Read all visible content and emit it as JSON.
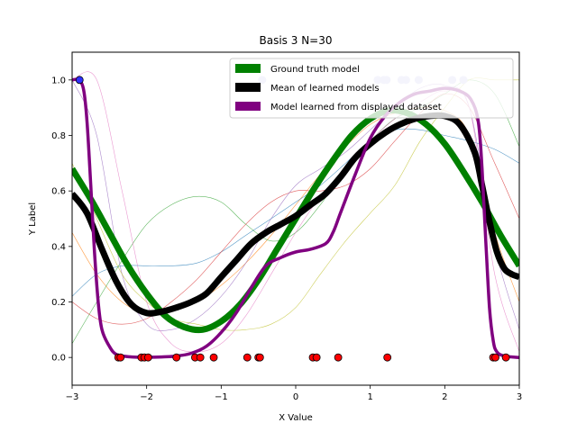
{
  "chart_data": {
    "type": "line",
    "title": "Basis 3 N=30",
    "xlabel": "X Value",
    "ylabel": "Y Label",
    "xlim": [
      -3,
      3
    ],
    "ylim": [
      -0.1,
      1.1
    ],
    "xticks": [
      -3,
      -2,
      -1,
      0,
      1,
      2,
      3
    ],
    "yticks": [
      0.0,
      0.2,
      0.4,
      0.6,
      0.8,
      1.0
    ],
    "xtick_labels": [
      "−3",
      "−2",
      "−1",
      "0",
      "1",
      "2",
      "3"
    ],
    "ytick_labels": [
      "0.0",
      "0.2",
      "0.4",
      "0.6",
      "0.8",
      "1.0"
    ],
    "grid": false,
    "legend_position": "top-right",
    "series": [
      {
        "name": "Ground truth model",
        "color": "#008000",
        "x": [
          -3.0,
          -2.75,
          -2.5,
          -2.25,
          -2.0,
          -1.75,
          -1.5,
          -1.25,
          -1.0,
          -0.75,
          -0.5,
          -0.25,
          0.0,
          0.25,
          0.5,
          0.75,
          1.0,
          1.25,
          1.5,
          1.75,
          2.0,
          2.25,
          2.5,
          2.75,
          3.0
        ],
        "y": [
          0.68,
          0.57,
          0.45,
          0.33,
          0.23,
          0.15,
          0.11,
          0.1,
          0.13,
          0.19,
          0.28,
          0.39,
          0.5,
          0.61,
          0.71,
          0.8,
          0.86,
          0.89,
          0.88,
          0.84,
          0.77,
          0.67,
          0.56,
          0.44,
          0.33
        ]
      },
      {
        "name": "Mean of learned models",
        "color": "#000000",
        "x": [
          -3.0,
          -2.8,
          -2.6,
          -2.4,
          -2.2,
          -2.0,
          -1.8,
          -1.6,
          -1.4,
          -1.2,
          -1.0,
          -0.8,
          -0.6,
          -0.4,
          -0.2,
          0.0,
          0.2,
          0.4,
          0.6,
          0.8,
          1.0,
          1.2,
          1.4,
          1.6,
          1.8,
          2.0,
          2.2,
          2.4,
          2.5,
          2.6,
          2.7,
          2.8,
          2.9,
          3.0
        ],
        "y": [
          0.59,
          0.52,
          0.39,
          0.27,
          0.19,
          0.16,
          0.165,
          0.18,
          0.2,
          0.23,
          0.29,
          0.35,
          0.41,
          0.45,
          0.48,
          0.51,
          0.55,
          0.59,
          0.65,
          0.72,
          0.77,
          0.81,
          0.84,
          0.86,
          0.87,
          0.87,
          0.84,
          0.74,
          0.62,
          0.49,
          0.38,
          0.32,
          0.3,
          0.29
        ]
      },
      {
        "name": "Model learned from displayed dataset",
        "color": "#800080",
        "x": [
          -3.0,
          -2.92,
          -2.85,
          -2.8,
          -2.75,
          -2.7,
          -2.65,
          -2.6,
          -2.5,
          -2.4,
          -2.2,
          -2.0,
          -1.8,
          -1.6,
          -1.4,
          -1.2,
          -1.0,
          -0.8,
          -0.6,
          -0.4,
          -0.2,
          0.0,
          0.2,
          0.4,
          0.5,
          0.6,
          0.8,
          1.0,
          1.2,
          1.4,
          1.6,
          1.8,
          2.0,
          2.2,
          2.35,
          2.45,
          2.5,
          2.55,
          2.6,
          2.65,
          2.7,
          2.8,
          3.0
        ],
        "y": [
          1.0,
          1.0,
          0.97,
          0.85,
          0.62,
          0.38,
          0.2,
          0.1,
          0.04,
          0.01,
          0.002,
          0.001,
          0.002,
          0.005,
          0.015,
          0.04,
          0.09,
          0.16,
          0.25,
          0.33,
          0.36,
          0.38,
          0.39,
          0.41,
          0.45,
          0.52,
          0.66,
          0.79,
          0.87,
          0.92,
          0.95,
          0.96,
          0.97,
          0.96,
          0.93,
          0.85,
          0.68,
          0.42,
          0.18,
          0.06,
          0.02,
          0.005,
          0.0
        ]
      }
    ],
    "background_models": [
      {
        "color": "#ff7f0e",
        "y": [
          0.45,
          0.3,
          0.2,
          0.16,
          0.17,
          0.2,
          0.26,
          0.34,
          0.44,
          0.55,
          0.66,
          0.76,
          0.84,
          0.88,
          0.9,
          0.89,
          0.8,
          0.45,
          0.2
        ]
      },
      {
        "color": "#1f77b4",
        "y": [
          0.22,
          0.3,
          0.33,
          0.33,
          0.33,
          0.34,
          0.38,
          0.44,
          0.5,
          0.56,
          0.62,
          0.7,
          0.78,
          0.82,
          0.82,
          0.8,
          0.78,
          0.75,
          0.7
        ]
      },
      {
        "color": "#2ca02c",
        "y": [
          0.05,
          0.2,
          0.35,
          0.48,
          0.55,
          0.58,
          0.56,
          0.48,
          0.42,
          0.45,
          0.55,
          0.68,
          0.78,
          0.86,
          0.9,
          0.95,
          1.0,
          0.95,
          0.76
        ]
      },
      {
        "color": "#d62728",
        "y": [
          0.2,
          0.14,
          0.12,
          0.14,
          0.2,
          0.28,
          0.38,
          0.48,
          0.56,
          0.6,
          0.6,
          0.62,
          0.68,
          0.78,
          0.88,
          0.95,
          0.9,
          0.7,
          0.5
        ]
      },
      {
        "color": "#9467bd",
        "y": [
          1.0,
          0.8,
          0.3,
          0.12,
          0.1,
          0.14,
          0.22,
          0.34,
          0.5,
          0.62,
          0.68,
          0.74,
          0.82,
          0.9,
          0.97,
          0.98,
          0.9,
          0.4,
          0.1
        ]
      },
      {
        "color": "#bcbd22",
        "y": [
          0.7,
          0.5,
          0.3,
          0.2,
          0.14,
          0.12,
          0.1,
          0.1,
          0.12,
          0.18,
          0.3,
          0.42,
          0.52,
          0.62,
          0.78,
          0.9,
          1.0,
          1.0,
          1.0
        ]
      },
      {
        "color": "#e377c2",
        "y": [
          1.0,
          1.0,
          0.6,
          0.2,
          0.05,
          0.02,
          0.05,
          0.15,
          0.3,
          0.45,
          0.58,
          0.68,
          0.78,
          0.86,
          0.92,
          0.96,
          0.9,
          0.3,
          0.02
        ]
      }
    ],
    "background_x": [
      -3.0,
      -2.67,
      -2.33,
      -2.0,
      -1.67,
      -1.33,
      -1.0,
      -0.67,
      -0.33,
      0.0,
      0.33,
      0.67,
      1.0,
      1.33,
      1.67,
      2.0,
      2.33,
      2.67,
      3.0
    ],
    "dataset_points": {
      "color": "#ff0000",
      "x": [
        -2.9,
        -2.38,
        -2.35,
        -2.07,
        -2.03,
        -1.98,
        -1.6,
        -1.35,
        -1.28,
        -1.1,
        -0.65,
        -0.5,
        -0.48,
        0.23,
        0.28,
        0.57,
        1.23,
        2.65,
        2.68,
        2.82
      ],
      "y": [
        1,
        0,
        0,
        0,
        0,
        0,
        0,
        0,
        0,
        0,
        0,
        0,
        0,
        0,
        0,
        0,
        0,
        0,
        0,
        0
      ]
    },
    "faded_points": {
      "color": "#c8c8ee",
      "x": [
        -0.45,
        1.1,
        1.18,
        1.22,
        1.42,
        1.48,
        1.65,
        2.1,
        2.25
      ],
      "y": [
        1,
        1,
        1,
        1,
        1,
        1,
        1,
        1,
        1
      ]
    }
  }
}
